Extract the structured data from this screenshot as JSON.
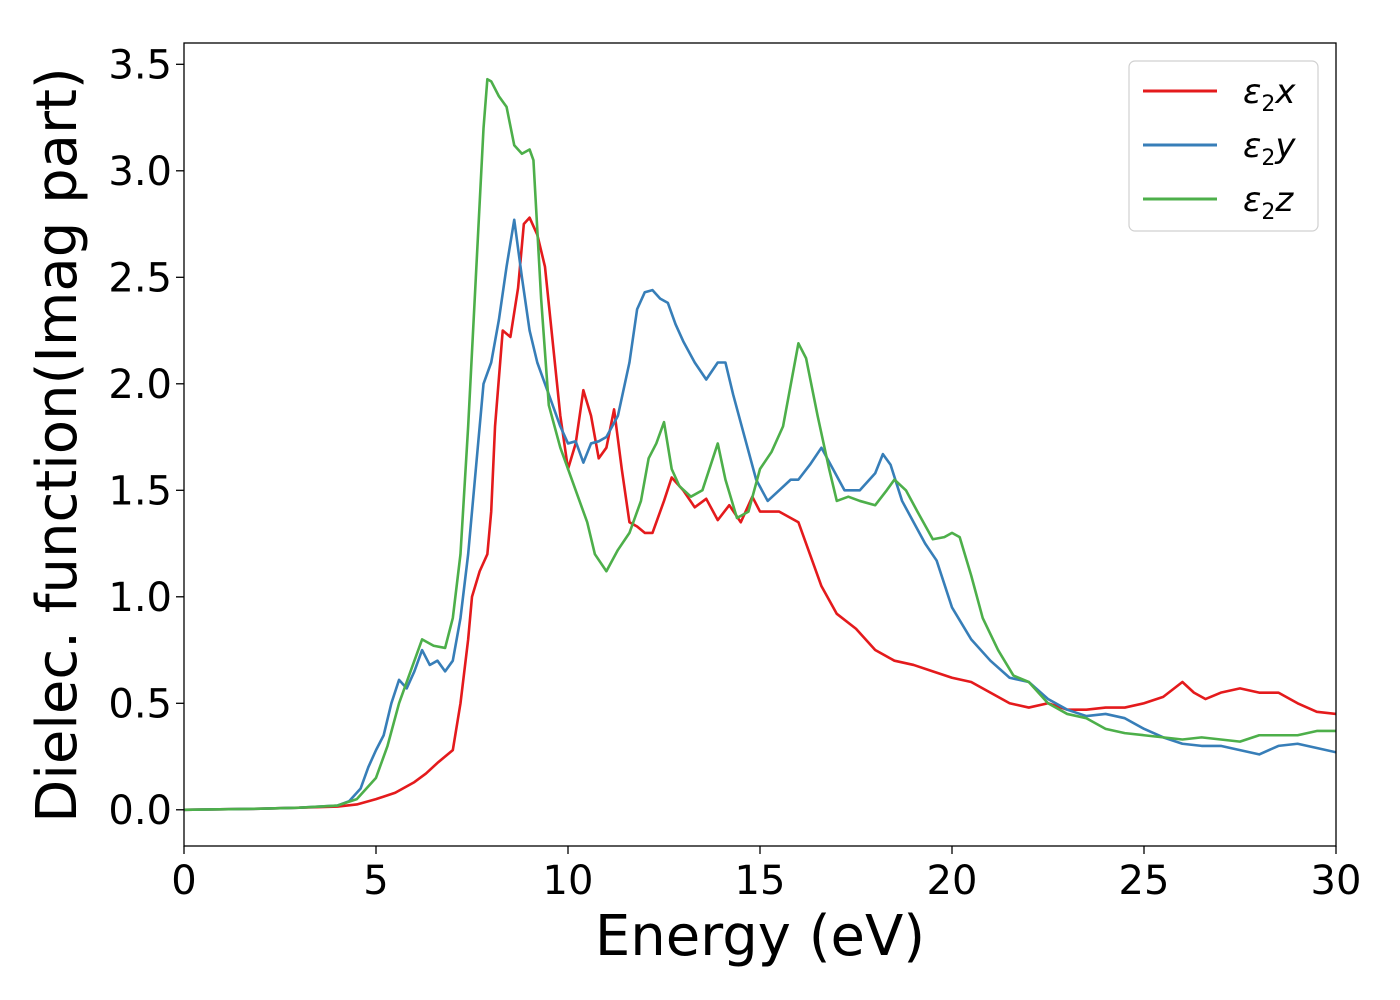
{
  "chart_data": {
    "type": "line",
    "title": "",
    "xlabel": "Energy (eV)",
    "ylabel": "Dielec. function(Imag part)",
    "xlim": [
      0,
      30
    ],
    "ylim": [
      -0.17,
      3.6
    ],
    "xticks": [
      0,
      5,
      10,
      15,
      20,
      25,
      30
    ],
    "yticks": [
      0.0,
      0.5,
      1.0,
      1.5,
      2.0,
      2.5,
      3.0,
      3.5
    ],
    "xtick_labels": [
      "0",
      "5",
      "10",
      "15",
      "20",
      "25",
      "30"
    ],
    "ytick_labels": [
      "0.0",
      "0.5",
      "1.0",
      "1.5",
      "2.0",
      "2.5",
      "3.0",
      "3.5"
    ],
    "grid": false,
    "legend_position": "top-right",
    "series": [
      {
        "name": "ε₂x",
        "legend_main": "ε",
        "legend_sub": "2",
        "legend_suffix": "x",
        "color": "#e41a1c",
        "points": [
          [
            0,
            0.0
          ],
          [
            2,
            0.005
          ],
          [
            3,
            0.01
          ],
          [
            4,
            0.015
          ],
          [
            4.5,
            0.025
          ],
          [
            5,
            0.05
          ],
          [
            5.5,
            0.08
          ],
          [
            6,
            0.13
          ],
          [
            6.3,
            0.17
          ],
          [
            6.6,
            0.22
          ],
          [
            7,
            0.28
          ],
          [
            7.2,
            0.5
          ],
          [
            7.4,
            0.8
          ],
          [
            7.5,
            1.0
          ],
          [
            7.7,
            1.12
          ],
          [
            7.9,
            1.2
          ],
          [
            8.0,
            1.4
          ],
          [
            8.1,
            1.8
          ],
          [
            8.3,
            2.25
          ],
          [
            8.5,
            2.22
          ],
          [
            8.7,
            2.45
          ],
          [
            8.85,
            2.75
          ],
          [
            9.0,
            2.78
          ],
          [
            9.2,
            2.7
          ],
          [
            9.4,
            2.55
          ],
          [
            9.6,
            2.2
          ],
          [
            9.8,
            1.85
          ],
          [
            10.0,
            1.6
          ],
          [
            10.2,
            1.72
          ],
          [
            10.4,
            1.97
          ],
          [
            10.6,
            1.85
          ],
          [
            10.8,
            1.65
          ],
          [
            11.0,
            1.7
          ],
          [
            11.2,
            1.88
          ],
          [
            11.4,
            1.6
          ],
          [
            11.6,
            1.35
          ],
          [
            11.8,
            1.33
          ],
          [
            12.0,
            1.3
          ],
          [
            12.2,
            1.3
          ],
          [
            12.5,
            1.45
          ],
          [
            12.7,
            1.56
          ],
          [
            13.0,
            1.5
          ],
          [
            13.3,
            1.42
          ],
          [
            13.6,
            1.46
          ],
          [
            13.9,
            1.36
          ],
          [
            14.2,
            1.43
          ],
          [
            14.5,
            1.35
          ],
          [
            14.8,
            1.47
          ],
          [
            15.0,
            1.4
          ],
          [
            15.5,
            1.4
          ],
          [
            15.8,
            1.37
          ],
          [
            16.0,
            1.35
          ],
          [
            16.3,
            1.2
          ],
          [
            16.6,
            1.05
          ],
          [
            17.0,
            0.92
          ],
          [
            17.5,
            0.85
          ],
          [
            18.0,
            0.75
          ],
          [
            18.5,
            0.7
          ],
          [
            19.0,
            0.68
          ],
          [
            19.5,
            0.65
          ],
          [
            20.0,
            0.62
          ],
          [
            20.5,
            0.6
          ],
          [
            21.0,
            0.55
          ],
          [
            21.5,
            0.5
          ],
          [
            22.0,
            0.48
          ],
          [
            22.5,
            0.5
          ],
          [
            23.0,
            0.47
          ],
          [
            23.5,
            0.47
          ],
          [
            24.0,
            0.48
          ],
          [
            24.5,
            0.48
          ],
          [
            25.0,
            0.5
          ],
          [
            25.5,
            0.53
          ],
          [
            26.0,
            0.6
          ],
          [
            26.3,
            0.55
          ],
          [
            26.6,
            0.52
          ],
          [
            27.0,
            0.55
          ],
          [
            27.5,
            0.57
          ],
          [
            28.0,
            0.55
          ],
          [
            28.5,
            0.55
          ],
          [
            29.0,
            0.5
          ],
          [
            29.5,
            0.46
          ],
          [
            30.0,
            0.45
          ]
        ]
      },
      {
        "name": "ε₂y",
        "legend_main": "ε",
        "legend_sub": "2",
        "legend_suffix": "y",
        "color": "#377eb8",
        "points": [
          [
            0,
            0.0
          ],
          [
            2,
            0.005
          ],
          [
            3,
            0.01
          ],
          [
            4,
            0.02
          ],
          [
            4.3,
            0.04
          ],
          [
            4.6,
            0.1
          ],
          [
            4.8,
            0.2
          ],
          [
            5.0,
            0.28
          ],
          [
            5.2,
            0.35
          ],
          [
            5.4,
            0.5
          ],
          [
            5.6,
            0.61
          ],
          [
            5.8,
            0.57
          ],
          [
            6.0,
            0.65
          ],
          [
            6.2,
            0.75
          ],
          [
            6.4,
            0.68
          ],
          [
            6.6,
            0.7
          ],
          [
            6.8,
            0.65
          ],
          [
            7.0,
            0.7
          ],
          [
            7.2,
            0.9
          ],
          [
            7.4,
            1.2
          ],
          [
            7.6,
            1.6
          ],
          [
            7.8,
            2.0
          ],
          [
            8.0,
            2.1
          ],
          [
            8.2,
            2.3
          ],
          [
            8.4,
            2.55
          ],
          [
            8.6,
            2.77
          ],
          [
            8.8,
            2.5
          ],
          [
            9.0,
            2.25
          ],
          [
            9.2,
            2.1
          ],
          [
            9.5,
            1.95
          ],
          [
            9.8,
            1.8
          ],
          [
            10.0,
            1.72
          ],
          [
            10.2,
            1.73
          ],
          [
            10.4,
            1.63
          ],
          [
            10.6,
            1.72
          ],
          [
            10.8,
            1.73
          ],
          [
            11.0,
            1.75
          ],
          [
            11.3,
            1.85
          ],
          [
            11.6,
            2.1
          ],
          [
            11.8,
            2.35
          ],
          [
            12.0,
            2.43
          ],
          [
            12.2,
            2.44
          ],
          [
            12.4,
            2.4
          ],
          [
            12.6,
            2.38
          ],
          [
            12.8,
            2.28
          ],
          [
            13.0,
            2.2
          ],
          [
            13.3,
            2.1
          ],
          [
            13.6,
            2.02
          ],
          [
            13.9,
            2.1
          ],
          [
            14.1,
            2.1
          ],
          [
            14.3,
            1.95
          ],
          [
            14.6,
            1.75
          ],
          [
            14.9,
            1.55
          ],
          [
            15.2,
            1.45
          ],
          [
            15.5,
            1.5
          ],
          [
            15.8,
            1.55
          ],
          [
            16.0,
            1.55
          ],
          [
            16.3,
            1.62
          ],
          [
            16.6,
            1.7
          ],
          [
            16.9,
            1.6
          ],
          [
            17.2,
            1.5
          ],
          [
            17.6,
            1.5
          ],
          [
            18.0,
            1.58
          ],
          [
            18.2,
            1.67
          ],
          [
            18.4,
            1.62
          ],
          [
            18.7,
            1.45
          ],
          [
            19.0,
            1.35
          ],
          [
            19.3,
            1.25
          ],
          [
            19.6,
            1.17
          ],
          [
            20.0,
            0.95
          ],
          [
            20.5,
            0.8
          ],
          [
            21.0,
            0.7
          ],
          [
            21.5,
            0.62
          ],
          [
            22.0,
            0.6
          ],
          [
            22.5,
            0.52
          ],
          [
            23.0,
            0.47
          ],
          [
            23.5,
            0.44
          ],
          [
            24.0,
            0.45
          ],
          [
            24.5,
            0.43
          ],
          [
            25.0,
            0.38
          ],
          [
            25.5,
            0.34
          ],
          [
            26.0,
            0.31
          ],
          [
            26.5,
            0.3
          ],
          [
            27.0,
            0.3
          ],
          [
            27.5,
            0.28
          ],
          [
            28.0,
            0.26
          ],
          [
            28.5,
            0.3
          ],
          [
            29.0,
            0.31
          ],
          [
            29.5,
            0.29
          ],
          [
            30.0,
            0.27
          ]
        ]
      },
      {
        "name": "ε₂z",
        "legend_main": "ε",
        "legend_sub": "2",
        "legend_suffix": "z",
        "color": "#4daf4a",
        "points": [
          [
            0,
            0.0
          ],
          [
            2,
            0.005
          ],
          [
            3,
            0.01
          ],
          [
            4,
            0.02
          ],
          [
            4.5,
            0.05
          ],
          [
            5.0,
            0.15
          ],
          [
            5.3,
            0.3
          ],
          [
            5.6,
            0.5
          ],
          [
            5.9,
            0.65
          ],
          [
            6.2,
            0.8
          ],
          [
            6.5,
            0.77
          ],
          [
            6.8,
            0.76
          ],
          [
            7.0,
            0.9
          ],
          [
            7.2,
            1.2
          ],
          [
            7.4,
            1.8
          ],
          [
            7.6,
            2.5
          ],
          [
            7.8,
            3.2
          ],
          [
            7.9,
            3.43
          ],
          [
            8.0,
            3.42
          ],
          [
            8.2,
            3.35
          ],
          [
            8.4,
            3.3
          ],
          [
            8.6,
            3.12
          ],
          [
            8.8,
            3.08
          ],
          [
            9.0,
            3.1
          ],
          [
            9.1,
            3.05
          ],
          [
            9.3,
            2.4
          ],
          [
            9.5,
            1.9
          ],
          [
            9.8,
            1.7
          ],
          [
            10.0,
            1.6
          ],
          [
            10.3,
            1.45
          ],
          [
            10.5,
            1.35
          ],
          [
            10.7,
            1.2
          ],
          [
            11.0,
            1.12
          ],
          [
            11.3,
            1.22
          ],
          [
            11.6,
            1.3
          ],
          [
            11.9,
            1.45
          ],
          [
            12.1,
            1.65
          ],
          [
            12.3,
            1.72
          ],
          [
            12.5,
            1.82
          ],
          [
            12.7,
            1.6
          ],
          [
            12.9,
            1.52
          ],
          [
            13.2,
            1.47
          ],
          [
            13.5,
            1.5
          ],
          [
            13.9,
            1.72
          ],
          [
            14.1,
            1.55
          ],
          [
            14.4,
            1.37
          ],
          [
            14.7,
            1.4
          ],
          [
            15.0,
            1.6
          ],
          [
            15.3,
            1.68
          ],
          [
            15.6,
            1.8
          ],
          [
            16.0,
            2.19
          ],
          [
            16.2,
            2.12
          ],
          [
            16.5,
            1.85
          ],
          [
            16.8,
            1.6
          ],
          [
            17.0,
            1.45
          ],
          [
            17.3,
            1.47
          ],
          [
            17.6,
            1.45
          ],
          [
            18.0,
            1.43
          ],
          [
            18.3,
            1.5
          ],
          [
            18.5,
            1.55
          ],
          [
            18.8,
            1.5
          ],
          [
            19.1,
            1.4
          ],
          [
            19.5,
            1.27
          ],
          [
            19.8,
            1.28
          ],
          [
            20.0,
            1.3
          ],
          [
            20.2,
            1.28
          ],
          [
            20.5,
            1.1
          ],
          [
            20.8,
            0.9
          ],
          [
            21.2,
            0.75
          ],
          [
            21.6,
            0.63
          ],
          [
            22.0,
            0.6
          ],
          [
            22.5,
            0.5
          ],
          [
            23.0,
            0.45
          ],
          [
            23.5,
            0.43
          ],
          [
            24.0,
            0.38
          ],
          [
            24.5,
            0.36
          ],
          [
            25.0,
            0.35
          ],
          [
            25.5,
            0.34
          ],
          [
            26.0,
            0.33
          ],
          [
            26.5,
            0.34
          ],
          [
            27.0,
            0.33
          ],
          [
            27.5,
            0.32
          ],
          [
            28.0,
            0.35
          ],
          [
            28.5,
            0.35
          ],
          [
            29.0,
            0.35
          ],
          [
            29.5,
            0.37
          ],
          [
            30.0,
            0.37
          ]
        ]
      }
    ]
  }
}
